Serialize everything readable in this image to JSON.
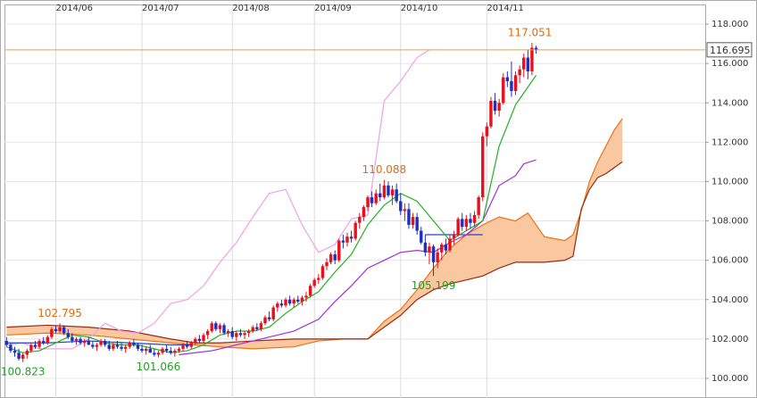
{
  "chart_data": {
    "type": "candlestick",
    "xlim": [
      -0.5,
      170.2
    ],
    "xticks": [
      {
        "value": 12,
        "label": "2014/06"
      },
      {
        "value": 33,
        "label": "2014/07"
      },
      {
        "value": 55,
        "label": "2014/08"
      },
      {
        "value": 75,
        "label": "2014/09"
      },
      {
        "value": 96,
        "label": "2014/10"
      },
      {
        "value": 117,
        "label": "2014/11"
      }
    ],
    "ylim": [
      99,
      119
    ],
    "yticks": [
      {
        "value": 100,
        "label": "100.000"
      },
      {
        "value": 102,
        "label": "102.000"
      },
      {
        "value": 104,
        "label": "104.000"
      },
      {
        "value": 106,
        "label": "106.000"
      },
      {
        "value": 108,
        "label": "108.000"
      },
      {
        "value": 110,
        "label": "110.000"
      },
      {
        "value": 112,
        "label": "112.000"
      },
      {
        "value": 114,
        "label": "114.000"
      },
      {
        "value": 116,
        "label": "116.000"
      },
      {
        "value": 118,
        "label": "118.000"
      }
    ],
    "grid": true,
    "up_color": "#e8101a",
    "down_color": "#1f2fc0",
    "open": [
      101.9,
      101.7,
      101.4,
      101.3,
      101.0,
      101.2,
      101.4,
      101.7,
      101.6,
      101.9,
      101.8,
      102.1,
      102.5,
      102.4,
      102.6,
      102.3,
      102.1,
      101.9,
      102.0,
      101.8,
      101.9,
      101.7,
      101.6,
      101.7,
      101.9,
      101.7,
      101.5,
      101.7,
      101.6,
      101.5,
      101.6,
      101.8,
      101.7,
      101.5,
      101.4,
      101.5,
      101.3,
      101.2,
      101.3,
      101.5,
      101.4,
      101.3,
      101.4,
      101.5,
      101.7,
      101.6,
      101.8,
      102.0,
      101.9,
      102.2,
      102.4,
      102.8,
      102.5,
      102.7,
      102.3,
      102.4,
      102.1,
      102.3,
      102.2,
      102.3,
      102.4,
      102.6,
      102.5,
      102.8,
      103.1,
      103.0,
      103.6,
      103.8,
      103.7,
      104.0,
      103.8,
      104.0,
      103.9,
      104.1,
      104.2,
      104.7,
      105.0,
      105.1,
      105.7,
      105.9,
      106.3,
      106.0,
      107.0,
      106.9,
      107.2,
      107.1,
      107.9,
      108.2,
      108.7,
      109.2,
      108.9,
      109.4,
      109.2,
      109.8,
      109.3,
      109.6,
      109.0,
      108.5,
      108.6,
      107.8,
      108.2,
      107.5,
      106.9,
      106.4,
      106.7,
      105.9,
      106.4,
      106.8,
      106.5,
      107.1,
      107.3,
      108.1,
      107.7,
      108.1,
      107.9,
      108.3,
      109.2,
      112.3,
      112.8,
      114.1,
      113.6,
      114.0,
      115.3,
      115.1,
      114.6,
      115.4,
      115.7,
      116.3,
      115.6,
      116.8
    ],
    "high": [
      102.1,
      101.8,
      101.6,
      101.5,
      101.3,
      101.5,
      101.8,
      101.9,
      102.0,
      102.1,
      102.2,
      102.6,
      102.7,
      102.795,
      102.7,
      102.5,
      102.3,
      102.1,
      102.1,
      102.0,
      102.1,
      101.9,
      101.8,
      102.0,
      102.0,
      101.9,
      101.8,
      101.9,
      101.8,
      101.7,
      101.9,
      102.0,
      101.8,
      101.7,
      101.6,
      101.7,
      101.5,
      101.4,
      101.6,
      101.7,
      101.6,
      101.5,
      101.6,
      101.8,
      101.9,
      101.9,
      102.1,
      102.2,
      102.3,
      102.5,
      102.9,
      102.9,
      102.8,
      102.8,
      102.5,
      102.6,
      102.4,
      102.5,
      102.4,
      102.5,
      102.7,
      102.8,
      102.9,
      103.2,
      103.4,
      103.7,
      103.9,
      104.0,
      104.1,
      104.2,
      104.1,
      104.2,
      104.2,
      104.4,
      104.8,
      105.1,
      105.3,
      105.8,
      106.1,
      106.4,
      106.5,
      107.1,
      107.3,
      107.4,
      107.5,
      108.0,
      108.4,
      108.8,
      109.3,
      109.5,
      109.6,
      109.9,
      110.088,
      110.0,
      109.8,
      109.9,
      109.4,
      108.9,
      108.9,
      108.4,
      108.4,
      107.7,
      107.3,
      106.9,
      106.8,
      106.6,
      106.9,
      107.1,
      107.3,
      107.5,
      108.2,
      108.4,
      108.3,
      108.4,
      108.5,
      109.3,
      112.5,
      113.0,
      114.3,
      114.5,
      114.2,
      115.5,
      115.6,
      116.1,
      115.6,
      115.9,
      116.5,
      116.7,
      117.051,
      116.9
    ],
    "low": [
      101.6,
      101.3,
      101.1,
      100.9,
      100.823,
      101.0,
      101.3,
      101.5,
      101.5,
      101.7,
      101.7,
      102.0,
      102.3,
      102.3,
      102.2,
      102.0,
      101.8,
      101.7,
      101.7,
      101.6,
      101.7,
      101.5,
      101.4,
      101.6,
      101.6,
      101.4,
      101.4,
      101.5,
      101.4,
      101.3,
      101.5,
      101.6,
      101.4,
      101.3,
      101.2,
      101.3,
      101.1,
      101.066,
      101.2,
      101.3,
      101.2,
      101.1,
      101.3,
      101.4,
      101.5,
      101.5,
      101.7,
      101.8,
      101.8,
      102.0,
      102.3,
      102.4,
      102.3,
      102.2,
      102.1,
      102.0,
      101.9,
      102.1,
      102.0,
      102.1,
      102.3,
      102.4,
      102.4,
      102.7,
      102.9,
      102.9,
      103.4,
      103.6,
      103.6,
      103.7,
      103.6,
      103.8,
      103.7,
      103.9,
      104.1,
      104.6,
      104.8,
      105.0,
      105.5,
      105.8,
      105.8,
      105.9,
      106.6,
      106.7,
      106.9,
      107.0,
      107.6,
      108.0,
      108.5,
      108.7,
      108.8,
      109.0,
      109.1,
      109.2,
      108.8,
      108.9,
      108.3,
      108.0,
      107.6,
      107.6,
      107.3,
      106.8,
      106.2,
      105.8,
      105.199,
      105.6,
      106.0,
      106.3,
      106.4,
      106.8,
      107.2,
      107.5,
      107.5,
      107.6,
      107.7,
      108.1,
      109.0,
      111.8,
      112.7,
      113.4,
      113.3,
      113.9,
      114.8,
      114.3,
      114.4,
      115.0,
      115.3,
      115.2,
      115.4,
      116.5
    ],
    "close": [
      101.7,
      101.4,
      101.3,
      101.0,
      101.2,
      101.4,
      101.7,
      101.6,
      101.9,
      101.8,
      102.1,
      102.5,
      102.4,
      102.6,
      102.3,
      102.1,
      101.9,
      102.0,
      101.8,
      101.9,
      101.7,
      101.6,
      101.7,
      101.9,
      101.7,
      101.5,
      101.7,
      101.6,
      101.5,
      101.6,
      101.8,
      101.7,
      101.5,
      101.4,
      101.5,
      101.3,
      101.2,
      101.3,
      101.5,
      101.4,
      101.3,
      101.4,
      101.5,
      101.7,
      101.6,
      101.8,
      102.0,
      101.9,
      102.2,
      102.4,
      102.8,
      102.5,
      102.7,
      102.3,
      102.4,
      102.1,
      102.3,
      102.2,
      102.3,
      102.4,
      102.6,
      102.5,
      102.8,
      103.1,
      103.0,
      103.6,
      103.8,
      103.7,
      104.0,
      103.8,
      104.0,
      103.9,
      104.1,
      104.2,
      104.7,
      105.0,
      105.1,
      105.7,
      105.9,
      106.3,
      106.0,
      107.0,
      106.9,
      107.2,
      107.1,
      107.9,
      108.2,
      108.7,
      109.2,
      108.9,
      109.4,
      109.2,
      109.8,
      109.3,
      109.6,
      109.0,
      108.5,
      108.6,
      107.8,
      108.2,
      107.5,
      106.9,
      106.4,
      106.7,
      105.9,
      106.4,
      106.8,
      106.5,
      107.1,
      107.3,
      108.1,
      107.7,
      108.1,
      107.9,
      108.3,
      109.2,
      112.3,
      112.8,
      114.1,
      113.6,
      114.0,
      115.3,
      115.1,
      114.6,
      115.4,
      115.7,
      116.3,
      115.6,
      116.8,
      116.695
    ],
    "cloud": {
      "x": [
        0,
        10,
        20,
        30,
        40,
        46,
        52,
        60,
        70,
        76,
        82,
        88,
        92,
        96,
        100,
        104,
        108,
        112,
        116,
        120,
        124,
        127,
        131,
        136,
        138,
        140,
        142,
        144,
        146,
        148,
        150
      ],
      "fill": "#f9c7a0",
      "span_a": {
        "color": "#e8741a",
        "values": [
          102.2,
          102.3,
          102.2,
          102.0,
          101.8,
          101.7,
          101.6,
          101.5,
          101.6,
          101.9,
          102.0,
          102.0,
          102.9,
          103.5,
          104.5,
          105.6,
          106.6,
          107.3,
          107.8,
          108.2,
          108.0,
          108.4,
          107.2,
          107.0,
          107.3,
          108.5,
          110.0,
          111.0,
          111.8,
          112.6,
          113.2
        ]
      },
      "span_b": {
        "color": "#9a2a10",
        "values": [
          102.6,
          102.7,
          102.6,
          102.4,
          102.0,
          101.8,
          101.8,
          101.9,
          102.0,
          102.0,
          102.0,
          102.0,
          102.6,
          103.2,
          104.0,
          104.5,
          104.8,
          105.0,
          105.2,
          105.6,
          105.9,
          105.9,
          105.9,
          106.0,
          106.2,
          108.6,
          109.6,
          110.2,
          110.4,
          110.7,
          111.0
        ]
      }
    },
    "lines": [
      {
        "color": "#f0a0e8",
        "x": [
          0,
          4,
          8,
          12,
          16,
          20,
          24,
          28,
          32,
          36,
          40,
          44,
          48,
          52,
          56,
          60,
          64,
          68,
          72,
          76,
          80,
          84,
          88,
          92,
          96,
          100,
          103
        ],
        "values": [
          101.7,
          101.8,
          101.5,
          101.5,
          101.5,
          102.0,
          102.8,
          102.4,
          102.3,
          102.8,
          103.8,
          104.0,
          104.7,
          105.9,
          106.9,
          108.2,
          109.4,
          109.6,
          107.8,
          106.4,
          106.8,
          108.1,
          108.3,
          114.1,
          115.1,
          116.3,
          116.695
        ]
      },
      {
        "color": "#2a40d0",
        "x": [
          0,
          10,
          20,
          30,
          40,
          45,
          60,
          102,
          108,
          116
        ],
        "values": [
          101.8,
          101.8,
          101.9,
          101.8,
          101.7,
          101.7,
          null,
          107.3,
          107.3,
          107.3
        ]
      },
      {
        "color": "#9b30d8",
        "x": [
          42,
          50,
          60,
          70,
          76,
          80,
          84,
          88,
          92,
          96,
          100,
          104,
          108,
          112,
          116,
          120,
          124,
          126,
          129
        ],
        "values": [
          101.2,
          101.4,
          101.9,
          102.4,
          103.0,
          103.9,
          104.7,
          105.6,
          106.0,
          106.4,
          106.5,
          106.4,
          106.9,
          107.3,
          108.0,
          109.8,
          110.3,
          110.9,
          111.1
        ]
      },
      {
        "color": "#22b022",
        "x": [
          0,
          4,
          8,
          12,
          16,
          20,
          24,
          28,
          32,
          36,
          40,
          44,
          48,
          52,
          56,
          60,
          64,
          68,
          72,
          76,
          80,
          84,
          88,
          92,
          96,
          100,
          104,
          108,
          112,
          116,
          120,
          124,
          129
        ],
        "values": [
          101.6,
          101.3,
          101.4,
          101.8,
          102.2,
          102.1,
          101.8,
          101.7,
          101.7,
          101.5,
          101.3,
          101.4,
          101.7,
          102.2,
          102.4,
          102.4,
          102.6,
          103.3,
          103.9,
          104.4,
          105.4,
          106.3,
          107.8,
          108.8,
          109.4,
          109.0,
          108.0,
          107.0,
          107.5,
          108.0,
          111.8,
          113.9,
          115.4
        ]
      }
    ],
    "last_price": {
      "value": 116.695,
      "color": "#e8a040"
    },
    "annotations": [
      {
        "x": 127.5,
        "y": 117.051,
        "color": "#e06a10",
        "anchor": "above"
      },
      {
        "x": 92,
        "y": 110.088,
        "color": "#e06a10",
        "anchor": "above"
      },
      {
        "x": 104,
        "y": 105.199,
        "color": "#22a022",
        "anchor": "below"
      },
      {
        "x": 13,
        "y": 102.795,
        "color": "#e06a10",
        "anchor": "above"
      },
      {
        "x": 4,
        "y": 100.823,
        "color": "#22a022",
        "anchor": "below"
      },
      {
        "x": 37,
        "y": 101.066,
        "color": "#22a022",
        "anchor": "below"
      }
    ]
  }
}
